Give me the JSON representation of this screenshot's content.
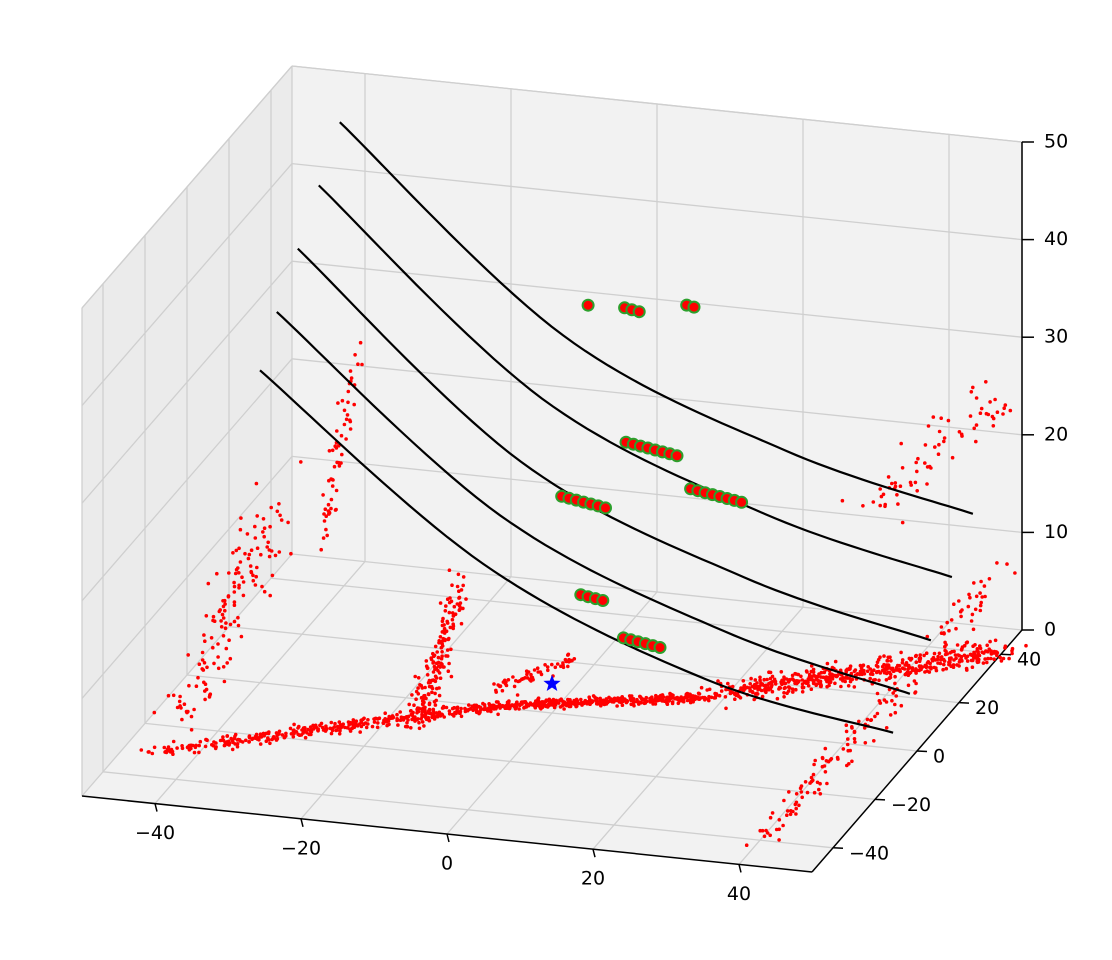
{
  "chart_data": {
    "type": "scatter",
    "projection": "3d",
    "title": "",
    "xlabel": "",
    "ylabel": "",
    "zlabel": "",
    "grid": true,
    "pane_color": "#f2f2f2",
    "xlim": [
      -50,
      50
    ],
    "ylim": [
      -50,
      50
    ],
    "zlim": [
      0,
      50
    ],
    "x_ticks": [
      -40,
      -20,
      0,
      20,
      40
    ],
    "y_ticks": [
      -40,
      -20,
      0,
      20,
      40
    ],
    "z_ticks": [
      0,
      10,
      20,
      30,
      40,
      50
    ],
    "x_tick_labels": [
      "−40",
      "−20",
      "0",
      "20",
      "40"
    ],
    "y_tick_labels": [
      "−40",
      "−20",
      "0",
      "20",
      "40"
    ],
    "z_tick_labels": [
      "0",
      "10",
      "20",
      "30",
      "40",
      "50"
    ],
    "series": [
      {
        "kind": "point_cloud",
        "color": "#ff0000",
        "marker": "dot",
        "segments": [
          {
            "from": [
              -45,
              -30,
              0
            ],
            "to": [
              -8,
              0,
              0
            ],
            "count": 380,
            "spread": [
              4,
              3,
              0.5
            ]
          },
          {
            "from": [
              -8,
              0,
              0
            ],
            "to": [
              18,
              12,
              0
            ],
            "count": 420,
            "spread": [
              3,
              2,
              0.5
            ]
          },
          {
            "from": [
              20,
              14,
              0
            ],
            "to": [
              50,
              40,
              0
            ],
            "count": 520,
            "spread": [
              5,
              6,
              1.5
            ]
          },
          {
            "from": [
              -46,
              -20,
              0
            ],
            "to": [
              -46,
              30,
              10
            ],
            "count": 140,
            "spread": [
              4,
              12,
              6
            ]
          },
          {
            "from": [
              -40,
              30,
              8
            ],
            "to": [
              -38,
              40,
              25
            ],
            "count": 60,
            "spread": [
              1,
              2,
              5
            ]
          },
          {
            "from": [
              -16,
              -10,
              0
            ],
            "to": [
              -14,
              6,
              10
            ],
            "count": 180,
            "spread": [
              2,
              4,
              4
            ]
          },
          {
            "from": [
              -6,
              -4,
              3
            ],
            "to": [
              2,
              4,
              5
            ],
            "count": 60,
            "spread": [
              2,
              1,
              1
            ]
          },
          {
            "from": [
              30,
              45,
              12
            ],
            "to": [
              48,
              45,
              25
            ],
            "count": 70,
            "spread": [
              6,
              2,
              3
            ]
          },
          {
            "from": [
              40,
              -40,
              0
            ],
            "to": [
              50,
              40,
              8
            ],
            "count": 160,
            "spread": [
              2,
              15,
              3
            ]
          }
        ]
      },
      {
        "kind": "lines",
        "color": "#000000",
        "curves": [
          [
            [
              -40,
              18,
              40
            ],
            [
              -10,
              20,
              20
            ],
            [
              20,
              22,
              10
            ],
            [
              45,
              24,
              5
            ]
          ],
          [
            [
              -40,
              28,
              44
            ],
            [
              -10,
              30,
              24
            ],
            [
              20,
              32,
              14
            ],
            [
              45,
              34,
              9
            ]
          ],
          [
            [
              -40,
              8,
              36
            ],
            [
              -10,
              10,
              17
            ],
            [
              20,
              12,
              7
            ],
            [
              45,
              14,
              2
            ]
          ],
          [
            [
              -40,
              38,
              48
            ],
            [
              -10,
              40,
              28
            ],
            [
              20,
              42,
              18
            ],
            [
              45,
              44,
              13
            ]
          ],
          [
            [
              -40,
              0,
              32
            ],
            [
              -10,
              2,
              14
            ],
            [
              20,
              4,
              4
            ],
            [
              45,
              6,
              0
            ]
          ]
        ]
      },
      {
        "kind": "highlighted_points",
        "marker_fill": "#ff0000",
        "marker_edge": "#2ca02c",
        "clusters": [
          {
            "center": [
              5,
              30,
              20
            ],
            "count": 8
          },
          {
            "center": [
              15,
              26,
              17
            ],
            "count": 8
          },
          {
            "center": [
              -2,
              22,
              16
            ],
            "count": 7
          },
          {
            "center": [
              2,
              12,
              9
            ],
            "count": 4
          },
          {
            "center": [
              10,
              8,
              6
            ],
            "count": 6
          },
          {
            "center": [
              -8,
              45,
              30
            ],
            "count": 1
          },
          {
            "center": [
              -2,
              45,
              30
            ],
            "count": 3
          },
          {
            "center": [
              6,
              45,
              31
            ],
            "count": 2
          }
        ]
      },
      {
        "kind": "star",
        "color": "#0000ff",
        "points": [
          [
            0,
            0,
            3
          ]
        ]
      }
    ]
  }
}
